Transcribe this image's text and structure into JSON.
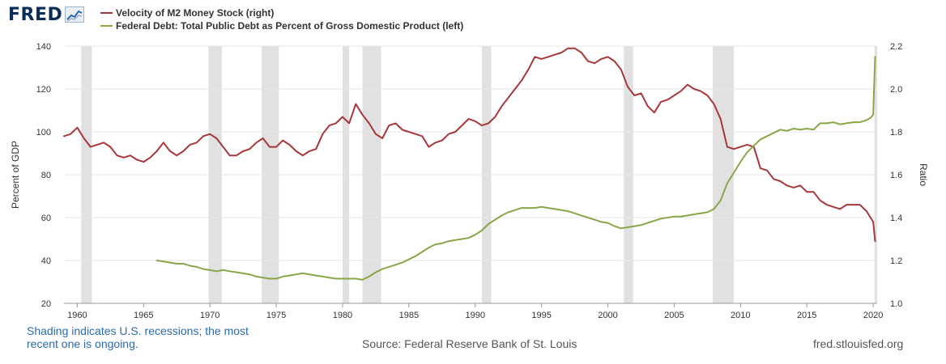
{
  "logo": {
    "text": "FRED",
    "icon": "chart-trend-icon"
  },
  "legend": [
    {
      "label": "Velocity of M2 Money Stock (right)",
      "color": "#a6373b"
    },
    {
      "label": "Federal Debt: Total Public Debt as Percent of Gross Domestic Product (left)",
      "color": "#89a648"
    }
  ],
  "footer": {
    "note": "Shading indicates U.S. recessions; the most recent one is ongoing.",
    "source": "Source: Federal Reserve Bank of St. Louis",
    "url": "fred.stlouisfed.org"
  },
  "chart_data": {
    "type": "line",
    "ylabel": "Percent of GDP",
    "y2label": "Ratio",
    "xlim": [
      1959,
      2020.3
    ],
    "ylim": [
      20,
      140
    ],
    "y2lim": [
      1.0,
      2.2
    ],
    "xticks": [
      "1960",
      "1965",
      "1970",
      "1975",
      "1980",
      "1985",
      "1990",
      "1995",
      "2000",
      "2005",
      "2010",
      "2015",
      "2020"
    ],
    "yticks": [
      "20",
      "40",
      "60",
      "80",
      "100",
      "120",
      "140"
    ],
    "y2ticks": [
      "1.0",
      "1.2",
      "1.4",
      "1.6",
      "1.8",
      "2.0",
      "2.2"
    ],
    "grid": "horizontal",
    "recessions": [
      [
        1960.3,
        1961.1
      ],
      [
        1969.9,
        1970.9
      ],
      [
        1973.9,
        1975.2
      ],
      [
        1980.0,
        1980.5
      ],
      [
        1981.5,
        1982.9
      ],
      [
        1990.5,
        1991.2
      ],
      [
        2001.2,
        2001.9
      ],
      [
        2007.9,
        2009.5
      ],
      [
        2020.1,
        2020.3
      ]
    ],
    "series": [
      {
        "name": "Velocity of M2 Money Stock (right)",
        "axis": "right",
        "color": "#a6373b",
        "x": [
          1959.0,
          1959.5,
          1960.0,
          1960.5,
          1961.0,
          1961.5,
          1962.0,
          1962.5,
          1963.0,
          1963.5,
          1964.0,
          1964.5,
          1965.0,
          1965.5,
          1966.0,
          1966.5,
          1967.0,
          1967.5,
          1968.0,
          1968.5,
          1969.0,
          1969.5,
          1970.0,
          1970.5,
          1971.0,
          1971.5,
          1972.0,
          1972.5,
          1973.0,
          1973.5,
          1974.0,
          1974.5,
          1975.0,
          1975.5,
          1976.0,
          1976.5,
          1977.0,
          1977.5,
          1978.0,
          1978.5,
          1979.0,
          1979.5,
          1980.0,
          1980.5,
          1981.0,
          1981.5,
          1982.0,
          1982.5,
          1983.0,
          1983.5,
          1984.0,
          1984.5,
          1985.0,
          1985.5,
          1986.0,
          1986.5,
          1987.0,
          1987.5,
          1988.0,
          1988.5,
          1989.0,
          1989.5,
          1990.0,
          1990.5,
          1991.0,
          1991.5,
          1992.0,
          1992.5,
          1993.0,
          1993.5,
          1994.0,
          1994.5,
          1995.0,
          1995.5,
          1996.0,
          1996.5,
          1997.0,
          1997.5,
          1998.0,
          1998.5,
          1999.0,
          1999.5,
          2000.0,
          2000.5,
          2001.0,
          2001.5,
          2002.0,
          2002.5,
          2003.0,
          2003.5,
          2004.0,
          2004.5,
          2005.0,
          2005.5,
          2006.0,
          2006.5,
          2007.0,
          2007.5,
          2008.0,
          2008.5,
          2009.0,
          2009.5,
          2010.0,
          2010.5,
          2011.0,
          2011.5,
          2012.0,
          2012.5,
          2013.0,
          2013.5,
          2014.0,
          2014.5,
          2015.0,
          2015.5,
          2016.0,
          2016.5,
          2017.0,
          2017.5,
          2018.0,
          2018.5,
          2019.0,
          2019.5,
          2019.8,
          2020.0,
          2020.15
        ],
        "values": [
          1.78,
          1.79,
          1.82,
          1.77,
          1.73,
          1.74,
          1.75,
          1.73,
          1.69,
          1.68,
          1.69,
          1.67,
          1.66,
          1.68,
          1.71,
          1.75,
          1.71,
          1.69,
          1.71,
          1.74,
          1.75,
          1.78,
          1.79,
          1.77,
          1.73,
          1.69,
          1.69,
          1.71,
          1.72,
          1.75,
          1.77,
          1.73,
          1.73,
          1.76,
          1.74,
          1.71,
          1.69,
          1.71,
          1.72,
          1.79,
          1.83,
          1.84,
          1.87,
          1.84,
          1.93,
          1.88,
          1.84,
          1.79,
          1.77,
          1.83,
          1.84,
          1.81,
          1.8,
          1.79,
          1.78,
          1.73,
          1.75,
          1.76,
          1.79,
          1.8,
          1.83,
          1.86,
          1.85,
          1.83,
          1.84,
          1.87,
          1.92,
          1.96,
          2.0,
          2.04,
          2.09,
          2.15,
          2.14,
          2.15,
          2.16,
          2.17,
          2.19,
          2.19,
          2.17,
          2.13,
          2.12,
          2.14,
          2.15,
          2.13,
          2.09,
          2.01,
          1.97,
          1.98,
          1.92,
          1.89,
          1.94,
          1.95,
          1.97,
          1.99,
          2.02,
          2.0,
          1.99,
          1.97,
          1.93,
          1.86,
          1.73,
          1.72,
          1.73,
          1.74,
          1.73,
          1.63,
          1.62,
          1.58,
          1.57,
          1.55,
          1.54,
          1.55,
          1.52,
          1.52,
          1.48,
          1.46,
          1.45,
          1.44,
          1.46,
          1.46,
          1.46,
          1.43,
          1.4,
          1.38,
          1.29
        ]
      },
      {
        "name": "Federal Debt: Total Public Debt as Percent of Gross Domestic Product (left)",
        "axis": "left",
        "color": "#89a648",
        "x": [
          1966.0,
          1966.5,
          1967.0,
          1967.5,
          1968.0,
          1968.5,
          1969.0,
          1969.5,
          1970.0,
          1970.5,
          1971.0,
          1971.5,
          1972.0,
          1972.5,
          1973.0,
          1973.5,
          1974.0,
          1974.5,
          1975.0,
          1975.5,
          1976.0,
          1976.5,
          1977.0,
          1977.5,
          1978.0,
          1978.5,
          1979.0,
          1979.5,
          1980.0,
          1980.5,
          1981.0,
          1981.5,
          1982.0,
          1982.5,
          1983.0,
          1983.5,
          1984.0,
          1984.5,
          1985.0,
          1985.5,
          1986.0,
          1986.5,
          1987.0,
          1987.5,
          1988.0,
          1988.5,
          1989.0,
          1989.5,
          1990.0,
          1990.5,
          1991.0,
          1991.5,
          1992.0,
          1992.5,
          1993.0,
          1993.5,
          1994.0,
          1994.5,
          1995.0,
          1995.5,
          1996.0,
          1996.5,
          1997.0,
          1997.5,
          1998.0,
          1998.5,
          1999.0,
          1999.5,
          2000.0,
          2000.5,
          2001.0,
          2001.5,
          2002.0,
          2002.5,
          2003.0,
          2003.5,
          2004.0,
          2004.5,
          2005.0,
          2005.5,
          2006.0,
          2006.5,
          2007.0,
          2007.5,
          2008.0,
          2008.5,
          2009.0,
          2009.5,
          2010.0,
          2010.5,
          2011.0,
          2011.5,
          2012.0,
          2012.5,
          2013.0,
          2013.5,
          2014.0,
          2014.5,
          2015.0,
          2015.5,
          2016.0,
          2016.5,
          2017.0,
          2017.5,
          2018.0,
          2018.5,
          2019.0,
          2019.5,
          2019.8,
          2020.0,
          2020.15
        ],
        "values": [
          40.0,
          39.5,
          39.0,
          38.5,
          38.5,
          37.5,
          37.0,
          36.0,
          35.5,
          35.0,
          35.5,
          35.0,
          34.5,
          34.0,
          33.5,
          32.5,
          32.0,
          31.5,
          31.5,
          32.5,
          33.0,
          33.5,
          34.0,
          33.5,
          33.0,
          32.5,
          32.0,
          31.5,
          31.5,
          31.5,
          31.5,
          31.0,
          32.5,
          34.5,
          36.0,
          37.0,
          38.0,
          39.0,
          40.5,
          42.0,
          44.0,
          46.0,
          47.5,
          48.0,
          49.0,
          49.5,
          50.0,
          50.5,
          52.0,
          54.0,
          57.0,
          59.0,
          61.0,
          62.5,
          63.5,
          64.5,
          64.5,
          64.5,
          65.0,
          64.5,
          64.0,
          63.5,
          63.0,
          62.0,
          61.0,
          60.0,
          59.0,
          58.0,
          57.5,
          56.0,
          55.0,
          55.5,
          56.0,
          56.5,
          57.5,
          58.5,
          59.5,
          60.0,
          60.5,
          60.5,
          61.0,
          61.5,
          62.0,
          62.5,
          64.0,
          68.0,
          76.0,
          81.0,
          86.0,
          90.5,
          93.5,
          96.5,
          98.0,
          99.5,
          101.0,
          100.5,
          101.5,
          101.0,
          101.5,
          101.0,
          104.0,
          104.0,
          104.5,
          103.5,
          104.0,
          104.5,
          104.5,
          105.5,
          106.5,
          108.0,
          135.0
        ]
      }
    ]
  }
}
